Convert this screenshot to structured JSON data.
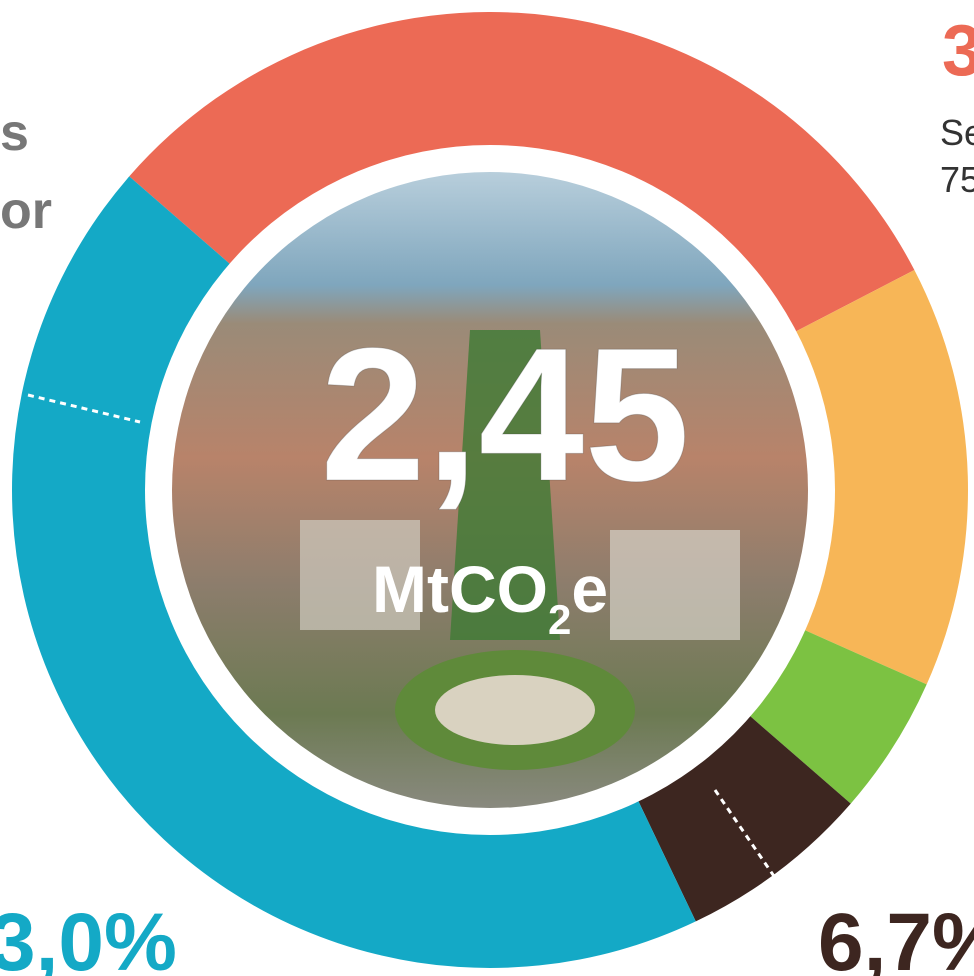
{
  "left_text": {
    "line1": "s",
    "line2": "or"
  },
  "top_right": {
    "heading": "3",
    "line1": "Se",
    "line2": "75"
  },
  "center": {
    "value": "2,45",
    "unit": "MtCO",
    "unit_sub": "2",
    "unit_end": "e"
  },
  "bottom_left": "3,0%",
  "bottom_right": "6,7%"
}
